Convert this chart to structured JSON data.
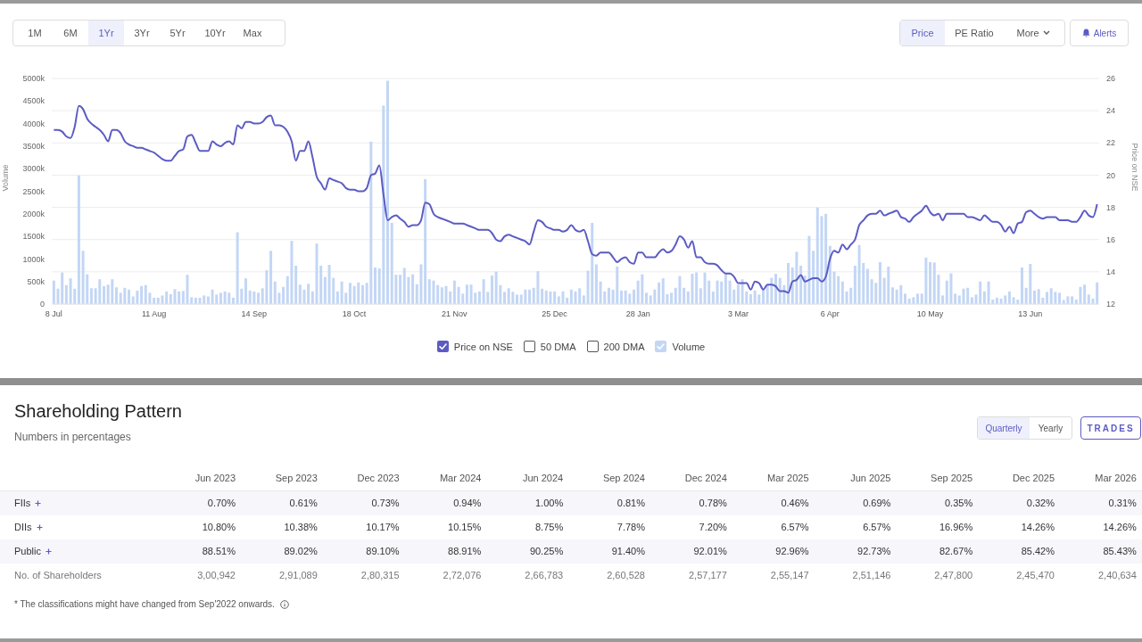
{
  "chart_data": [
    {
      "type": "bar",
      "ylabel": "Volume",
      "y2label": "Price on NSE",
      "categories": [
        "8 Jul",
        null,
        null,
        null,
        null,
        null,
        null,
        null,
        null,
        null,
        null,
        null,
        null,
        null,
        null,
        null,
        null,
        null,
        null,
        null,
        null,
        null,
        null,
        null,
        "11 Aug",
        null,
        null,
        null,
        null,
        null,
        null,
        null,
        null,
        null,
        null,
        null,
        null,
        null,
        null,
        null,
        null,
        null,
        null,
        null,
        null,
        null,
        null,
        null,
        "14 Sep",
        null,
        null,
        null,
        null,
        null,
        null,
        null,
        null,
        null,
        null,
        null,
        null,
        null,
        null,
        null,
        null,
        null,
        null,
        null,
        null,
        null,
        null,
        null,
        "18 Oct",
        null,
        null,
        null,
        null,
        null,
        null,
        null,
        null,
        null,
        null,
        null,
        null,
        null,
        null,
        null,
        null,
        null,
        null,
        null,
        null,
        null,
        null,
        null,
        "21 Nov",
        null,
        null,
        null,
        null,
        null,
        null,
        null,
        null,
        null,
        null,
        null,
        null,
        null,
        null,
        null,
        null,
        null,
        null,
        null,
        null,
        null,
        null,
        null,
        "25 Dec",
        null,
        null,
        null,
        null,
        null,
        null,
        null,
        null,
        null,
        null,
        null,
        null,
        null,
        null,
        null,
        null,
        null,
        null,
        null,
        "28 Jan",
        null,
        null,
        null,
        null,
        null,
        null,
        null,
        null,
        null,
        null,
        null,
        null,
        null,
        null,
        null,
        null,
        null,
        null,
        null,
        null,
        null,
        null,
        null,
        "3 Mar",
        null,
        null,
        null,
        null,
        null,
        null,
        null,
        null,
        null,
        null,
        null,
        null,
        null,
        null,
        null,
        null,
        null,
        null,
        null,
        null,
        null,
        "6 Apr",
        null,
        null,
        null,
        null,
        null,
        null,
        null,
        null,
        null,
        null,
        null,
        null,
        null,
        null,
        null,
        null,
        null,
        null,
        null,
        null,
        null,
        null,
        null,
        "10 May",
        null,
        null,
        null,
        null,
        null,
        null,
        null,
        null,
        null,
        null,
        null,
        null,
        null,
        null,
        null,
        null,
        null,
        null,
        null,
        null,
        null,
        null,
        null,
        "13 Jun",
        null,
        null,
        null,
        null,
        null,
        null,
        null,
        null,
        null,
        null,
        null,
        null,
        null,
        null,
        null,
        null
      ],
      "series": [
        {
          "name": "Volume",
          "type": "bar",
          "color": "#c3d6f5",
          "values": [
            520,
            340,
            700,
            420,
            570,
            340,
            2850,
            1180,
            660,
            350,
            350,
            550,
            400,
            430,
            550,
            370,
            250,
            360,
            320,
            170,
            300,
            400,
            420,
            250,
            140,
            140,
            190,
            280,
            220,
            330,
            280,
            290,
            650,
            150,
            140,
            140,
            190,
            170,
            320,
            210,
            250,
            280,
            250,
            140,
            1590,
            340,
            570,
            300,
            280,
            250,
            350,
            750,
            1180,
            500,
            250,
            380,
            620,
            1400,
            850,
            430,
            320,
            450,
            280,
            1340,
            850,
            600,
            870,
            580,
            280,
            500,
            250,
            470,
            400,
            480,
            420,
            470,
            3600,
            810,
            790,
            4400,
            4950,
            1800,
            650,
            650,
            800,
            600,
            660,
            440,
            880,
            2770,
            550,
            520,
            420,
            370,
            400,
            280,
            520,
            380,
            230,
            430,
            430,
            250,
            280,
            550,
            270,
            630,
            720,
            420,
            270,
            350,
            270,
            210,
            210,
            320,
            320,
            360,
            730,
            340,
            300,
            280,
            280,
            170,
            280,
            140,
            320,
            280,
            350,
            190,
            740,
            1800,
            880,
            500,
            280,
            360,
            320,
            830,
            300,
            300,
            230,
            320,
            520,
            660,
            250,
            190,
            320,
            480,
            570,
            220,
            250,
            360,
            620,
            360,
            280,
            670,
            700,
            350,
            700,
            520,
            280,
            520,
            500,
            670,
            520,
            320,
            430,
            550,
            280,
            220,
            300,
            210,
            340,
            420,
            580,
            670,
            580,
            420,
            910,
            810,
            1160,
            850,
            630,
            1510,
            1180,
            2140,
            1950,
            2000,
            1290,
            720,
            620,
            500,
            280,
            360,
            850,
            1310,
            910,
            780,
            550,
            470,
            930,
            580,
            830,
            370,
            320,
            420,
            230,
            120,
            150,
            230,
            230,
            1030,
            930,
            920,
            650,
            190,
            520,
            680,
            230,
            190,
            340,
            360,
            150,
            210,
            500,
            280,
            500,
            100,
            140,
            120,
            190,
            280,
            150,
            100,
            810,
            360,
            890,
            300,
            330,
            140,
            270,
            350,
            270,
            250,
            90,
            170,
            170,
            100,
            380,
            430,
            210,
            120,
            480
          ]
        },
        {
          "name": "Price on NSE",
          "type": "line",
          "axis": "y2",
          "color": "#5c5bc4",
          "values": [
            22.8,
            22.8,
            22.7,
            22.4,
            22.3,
            23.0,
            24.3,
            24.1,
            23.5,
            23.2,
            23.0,
            22.8,
            22.5,
            22.1,
            22.8,
            22.8,
            22.6,
            22.1,
            21.9,
            21.8,
            21.7,
            21.7,
            21.6,
            21.5,
            21.4,
            21.2,
            21.0,
            20.9,
            20.9,
            21.2,
            21.5,
            21.6,
            22.4,
            22.5,
            22.0,
            21.5,
            21.5,
            21.5,
            22.1,
            21.9,
            21.8,
            22.0,
            22.1,
            21.9,
            23.1,
            22.9,
            23.3,
            23.3,
            23.2,
            23.2,
            23.3,
            23.6,
            23.7,
            23.1,
            23.1,
            23.0,
            22.7,
            22.1,
            20.9,
            21.5,
            21.5,
            22.1,
            21.1,
            19.9,
            19.5,
            19.1,
            19.8,
            19.7,
            19.6,
            19.5,
            19.2,
            19.1,
            19.1,
            19.0,
            19.0,
            19.2,
            20.0,
            20.1,
            20.6,
            18.8,
            17.2,
            17.4,
            17.5,
            17.3,
            17.1,
            16.8,
            16.9,
            16.9,
            17.2,
            18.3,
            18.2,
            17.6,
            17.4,
            17.3,
            17.2,
            17.1,
            17.0,
            17.0,
            17.0,
            16.9,
            16.8,
            16.7,
            16.6,
            16.6,
            16.6,
            16.4,
            16.0,
            15.9,
            16.2,
            16.3,
            16.2,
            16.1,
            16.0,
            15.9,
            15.7,
            16.5,
            17.2,
            17.1,
            16.8,
            16.7,
            16.6,
            16.6,
            16.5,
            16.6,
            16.9,
            16.6,
            16.5,
            16.6,
            15.9,
            15.1,
            15.0,
            15.2,
            15.2,
            15.2,
            14.9,
            14.6,
            14.8,
            14.9,
            14.6,
            14.5,
            15.2,
            15.2,
            14.9,
            14.9,
            14.9,
            15.2,
            15.4,
            15.2,
            15.3,
            15.7,
            16.2,
            16.0,
            15.5,
            15.9,
            14.9,
            14.9,
            14.6,
            14.5,
            14.5,
            14.4,
            14.1,
            13.9,
            13.9,
            13.7,
            13.3,
            13.3,
            13.3,
            12.9,
            13.4,
            13.3,
            12.9,
            13.2,
            13.2,
            13.1,
            12.8,
            12.8,
            12.7,
            13.4,
            13.5,
            13.8,
            13.4,
            13.5,
            13.6,
            13.6,
            13.4,
            13.7,
            14.8,
            15.3,
            15.2,
            15.7,
            15.4,
            15.7,
            16.0,
            16.9,
            17.2,
            17.5,
            17.6,
            17.6,
            17.8,
            17.5,
            17.6,
            17.7,
            17.8,
            17.4,
            17.3,
            17.1,
            17.4,
            17.6,
            17.8,
            18.1,
            17.7,
            17.5,
            17.6,
            17.2,
            17.6,
            17.6,
            17.6,
            17.6,
            17.6,
            17.4,
            17.4,
            17.3,
            17.2,
            17.5,
            17.3,
            17.1,
            17.1,
            16.9,
            16.5,
            16.8,
            16.4,
            17.0,
            17.1,
            17.7,
            17.8,
            17.6,
            17.4,
            17.3,
            17.4,
            17.4,
            17.4,
            17.2,
            17.2,
            17.2,
            17.1,
            17.1,
            17.4,
            17.8,
            17.5,
            17.4,
            18.2
          ]
        }
      ],
      "ylim": [
        0,
        5000
      ],
      "yticks": [
        0,
        {
          "value": 500,
          "label": "500k"
        },
        {
          "value": 1000,
          "label": "1000k"
        },
        {
          "value": 1500,
          "label": "1500k"
        },
        {
          "value": 2000,
          "label": "2000k"
        },
        {
          "value": 2500,
          "label": "2500k"
        },
        {
          "value": 3000,
          "label": "3000k"
        },
        {
          "value": 3500,
          "label": "3500k"
        },
        {
          "value": 4000,
          "label": "4000k"
        },
        {
          "value": 4500,
          "label": "4500k"
        },
        {
          "value": 5000,
          "label": "5000k"
        }
      ],
      "y2lim": [
        12,
        26
      ],
      "y2ticks": [
        12,
        14,
        16,
        18,
        20,
        22,
        24,
        26
      ],
      "grid": "y",
      "legend": "bottom",
      "annotations": [
        "1M",
        "6M",
        "1Yr",
        "3Yr",
        "5Yr",
        "10Yr",
        "Max",
        "Price",
        "PE Ratio",
        "More",
        "Alerts",
        "50 DMA",
        "200 DMA"
      ]
    },
    {
      "type": "other",
      "title": "Shareholding Pattern",
      "subtitle": "Numbers in percentages",
      "categories": [
        "Jun 2023",
        "Sep 2023",
        "Dec 2023",
        "Mar 2024",
        "Jun 2024",
        "Sep 2024",
        "Dec 2024",
        "Mar 2025",
        "Jun 2025",
        "Sep 2025",
        "Dec 2025",
        "Mar 2026"
      ],
      "series": [
        {
          "name": "FIIs",
          "values": [
            0.7,
            0.61,
            0.73,
            0.94,
            1.0,
            0.81,
            0.78,
            0.46,
            0.69,
            0.35,
            0.32,
            0.31
          ],
          "value_labels": [
            "0.70%",
            "0.61%",
            "0.73%",
            "0.94%",
            "1.00%",
            "0.81%",
            "0.78%",
            "0.46%",
            "0.69%",
            "0.35%",
            "0.32%",
            "0.31%"
          ]
        },
        {
          "name": "DIIs",
          "values": [
            10.8,
            10.38,
            10.17,
            10.15,
            8.75,
            7.78,
            7.2,
            6.57,
            6.57,
            16.96,
            14.26,
            14.26
          ],
          "value_labels": [
            "10.80%",
            "10.38%",
            "10.17%",
            "10.15%",
            "8.75%",
            "7.78%",
            "7.20%",
            "6.57%",
            "6.57%",
            "16.96%",
            "14.26%",
            "14.26%"
          ]
        },
        {
          "name": "Public",
          "values": [
            88.51,
            89.02,
            89.1,
            88.91,
            90.25,
            91.4,
            92.01,
            92.96,
            92.73,
            82.67,
            85.42,
            85.43
          ],
          "value_labels": [
            "88.51%",
            "89.02%",
            "89.10%",
            "88.91%",
            "90.25%",
            "91.40%",
            "92.01%",
            "92.96%",
            "92.73%",
            "82.67%",
            "85.42%",
            "85.43%"
          ]
        },
        {
          "name": "No. of Shareholders",
          "values": [
            300942,
            291089,
            280315,
            272076,
            266783,
            260528,
            257177,
            255147,
            251146,
            247800,
            245470,
            240634
          ],
          "value_labels": [
            "3,00,942",
            "2,91,089",
            "2,80,315",
            "2,72,076",
            "2,66,783",
            "2,60,528",
            "2,57,177",
            "2,55,147",
            "2,51,146",
            "2,47,800",
            "2,45,470",
            "2,40,634"
          ]
        }
      ],
      "annotations": [
        "Quarterly",
        "Yearly",
        "TRADES",
        "* The classifications might have changed from Sep'2022 onwards."
      ]
    }
  ]
}
